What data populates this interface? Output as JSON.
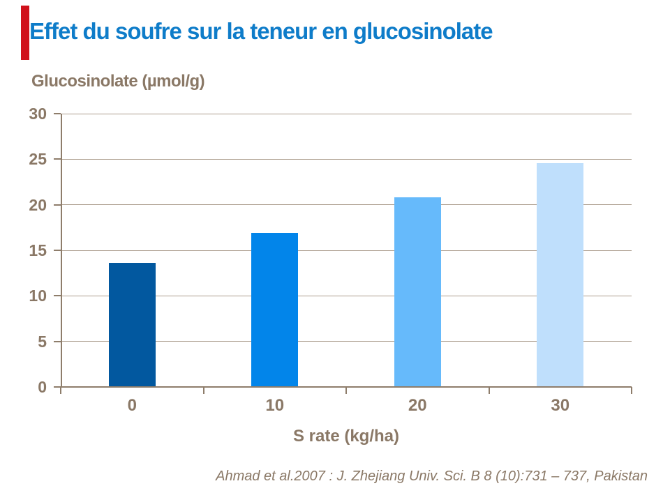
{
  "slide": {
    "accent_color": "#D0111B",
    "title_color": "#0E7CC9",
    "text_color": "#8A7866"
  },
  "chart_data": {
    "type": "bar",
    "title": "Effet du soufre sur la teneur en glucosinolate",
    "ylabel": "Glucosinolate (µmol/g)",
    "xlabel": "S rate (kg/ha)",
    "categories": [
      "0",
      "10",
      "20",
      "30"
    ],
    "values": [
      13.6,
      16.9,
      20.8,
      24.6
    ],
    "bar_colors": [
      "#02589F",
      "#0285EA",
      "#66BAFB",
      "#BFDFFC"
    ],
    "ylim": [
      0,
      30
    ],
    "yticks": [
      0,
      5,
      10,
      15,
      20,
      25,
      30
    ],
    "grid": "horizontal",
    "legend": "none",
    "axis_color": "#8E7D6B",
    "gridline_color": "#AB9C8C"
  },
  "footer": {
    "citation": "Ahmad et al.2007 : J. Zhejiang Univ. Sci. B 8 (10):731 – 737, Pakistan"
  }
}
